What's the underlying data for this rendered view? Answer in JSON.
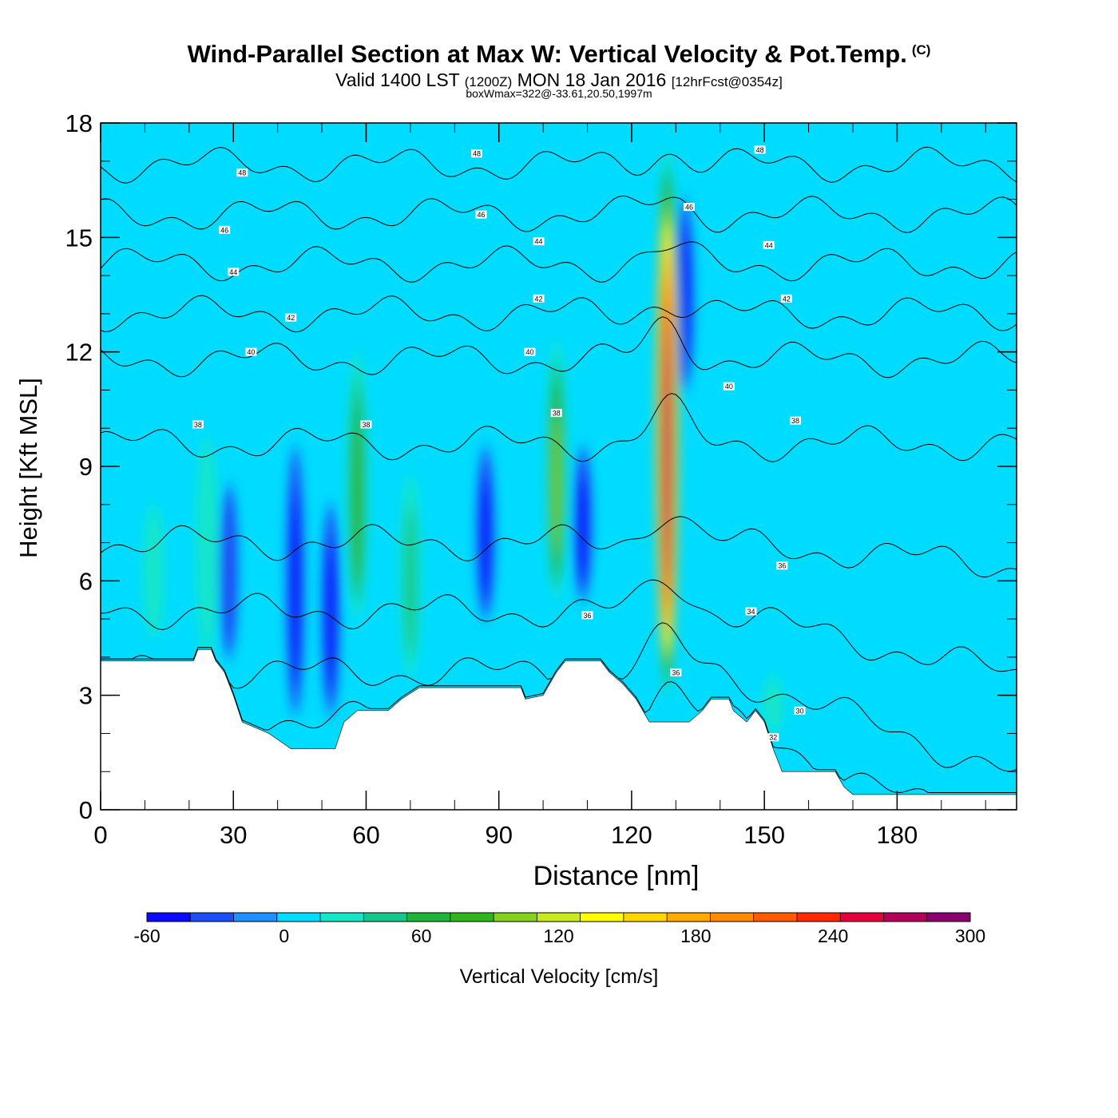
{
  "header": {
    "title": "Wind-Parallel Section at Max W: Vertical Velocity & Pot.Temp.",
    "copyright": "(C)",
    "subtitle_main": "Valid 1400 LST",
    "subtitle_utc": "(1200Z)",
    "subtitle_date": "MON 18 Jan 2016",
    "subtitle_fcst": "[12hrFcst@0354z]",
    "box_info": "boxWmax=322@-33.61,20.50,1997m"
  },
  "chart_data": {
    "type": "heatmap",
    "xlabel": "Distance [nm]",
    "ylabel": "Height [Kft MSL]",
    "xlim": [
      0,
      207
    ],
    "ylim": [
      0,
      18
    ],
    "x_ticks": [
      0,
      30,
      60,
      90,
      120,
      150,
      180
    ],
    "y_ticks": [
      0,
      3,
      6,
      9,
      12,
      15,
      18
    ],
    "colorbar": {
      "label": "Vertical Velocity [cm/s]",
      "ticks": [
        -60,
        0,
        60,
        120,
        180,
        240,
        300
      ],
      "bounds": [
        -60,
        300
      ],
      "colors": [
        "#0a0aff",
        "#1e4cf5",
        "#1e90ff",
        "#00dcff",
        "#14e6c8",
        "#14c88c",
        "#1eb43c",
        "#32b41e",
        "#82d21e",
        "#c8eb1e",
        "#ffff00",
        "#ffd700",
        "#ffaa00",
        "#ff8c00",
        "#ff5a00",
        "#ff2800",
        "#e6003c",
        "#b4005a",
        "#8c006e"
      ]
    },
    "background_level": 0,
    "updrafts": [
      {
        "x": 128,
        "bottom": 3.0,
        "top": 17.3,
        "peak": 322
      },
      {
        "x": 103,
        "bottom": 5.5,
        "top": 12.3,
        "peak": 100
      },
      {
        "x": 58,
        "bottom": 5.0,
        "top": 12.0,
        "peak": 80
      },
      {
        "x": 70,
        "bottom": 3.5,
        "top": 8.8,
        "peak": 40
      },
      {
        "x": 24,
        "bottom": 4.0,
        "top": 9.8,
        "peak": 30
      },
      {
        "x": 12,
        "bottom": 4.5,
        "top": 8.0,
        "peak": 30
      },
      {
        "x": 152,
        "bottom": 2.0,
        "top": 3.5,
        "peak": 35
      }
    ],
    "downdrafts": [
      {
        "x": 132,
        "bottom": 11.0,
        "top": 16.0,
        "peak": -40
      },
      {
        "x": 44,
        "bottom": 2.5,
        "top": 9.5,
        "peak": -50
      },
      {
        "x": 87,
        "bottom": 5.0,
        "top": 9.5,
        "peak": -45
      },
      {
        "x": 109,
        "bottom": 5.5,
        "top": 9.5,
        "peak": -40
      },
      {
        "x": 52,
        "bottom": 2.5,
        "top": 8.0,
        "peak": -45
      },
      {
        "x": 29,
        "bottom": 4.0,
        "top": 8.5,
        "peak": -35
      }
    ],
    "terrain": [
      {
        "x": 0,
        "h": 3.9
      },
      {
        "x": 21,
        "h": 3.9
      },
      {
        "x": 22,
        "h": 4.2
      },
      {
        "x": 25,
        "h": 4.2
      },
      {
        "x": 26,
        "h": 3.9
      },
      {
        "x": 28,
        "h": 3.6
      },
      {
        "x": 30,
        "h": 3.0
      },
      {
        "x": 32,
        "h": 2.3
      },
      {
        "x": 38,
        "h": 2.0
      },
      {
        "x": 43,
        "h": 1.6
      },
      {
        "x": 53,
        "h": 1.6
      },
      {
        "x": 55,
        "h": 2.3
      },
      {
        "x": 58,
        "h": 2.6
      },
      {
        "x": 65,
        "h": 2.6
      },
      {
        "x": 68,
        "h": 2.9
      },
      {
        "x": 72,
        "h": 3.2
      },
      {
        "x": 95,
        "h": 3.2
      },
      {
        "x": 96,
        "h": 2.9
      },
      {
        "x": 100,
        "h": 3.0
      },
      {
        "x": 103,
        "h": 3.6
      },
      {
        "x": 105,
        "h": 3.9
      },
      {
        "x": 113,
        "h": 3.9
      },
      {
        "x": 115,
        "h": 3.6
      },
      {
        "x": 118,
        "h": 3.3
      },
      {
        "x": 121,
        "h": 2.9
      },
      {
        "x": 124,
        "h": 2.3
      },
      {
        "x": 133,
        "h": 2.3
      },
      {
        "x": 136,
        "h": 2.6
      },
      {
        "x": 138,
        "h": 2.9
      },
      {
        "x": 142,
        "h": 2.9
      },
      {
        "x": 143,
        "h": 2.6
      },
      {
        "x": 146,
        "h": 2.3
      },
      {
        "x": 148,
        "h": 2.6
      },
      {
        "x": 150,
        "h": 2.3
      },
      {
        "x": 152,
        "h": 1.6
      },
      {
        "x": 154,
        "h": 1.0
      },
      {
        "x": 166,
        "h": 1.0
      },
      {
        "x": 168,
        "h": 0.6
      },
      {
        "x": 170,
        "h": 0.4
      },
      {
        "x": 207,
        "h": 0.4
      }
    ],
    "isentropes": [
      {
        "theta": 30,
        "base": 2.4
      },
      {
        "theta": 32,
        "base": 3.6
      },
      {
        "theta": 34,
        "base": 5.2
      },
      {
        "theta": 36,
        "base": 7.0
      },
      {
        "theta": 38,
        "base": 9.6
      },
      {
        "theta": 40,
        "base": 11.8
      },
      {
        "theta": 42,
        "base": 13.0
      },
      {
        "theta": 44,
        "base": 14.3
      },
      {
        "theta": 46,
        "base": 15.6
      },
      {
        "theta": 48,
        "base": 16.9
      }
    ],
    "contour_labels": [
      {
        "x": 32,
        "y": 16.7,
        "text": "48"
      },
      {
        "x": 85,
        "y": 17.2,
        "text": "48"
      },
      {
        "x": 149,
        "y": 17.3,
        "text": "48"
      },
      {
        "x": 28,
        "y": 15.2,
        "text": "46"
      },
      {
        "x": 86,
        "y": 15.6,
        "text": "46"
      },
      {
        "x": 133,
        "y": 15.8,
        "text": "46"
      },
      {
        "x": 30,
        "y": 14.1,
        "text": "44"
      },
      {
        "x": 99,
        "y": 14.9,
        "text": "44"
      },
      {
        "x": 151,
        "y": 14.8,
        "text": "44"
      },
      {
        "x": 43,
        "y": 12.9,
        "text": "42"
      },
      {
        "x": 99,
        "y": 13.4,
        "text": "42"
      },
      {
        "x": 155,
        "y": 13.4,
        "text": "42"
      },
      {
        "x": 34,
        "y": 12.0,
        "text": "40"
      },
      {
        "x": 97,
        "y": 12.0,
        "text": "40"
      },
      {
        "x": 142,
        "y": 11.1,
        "text": "40"
      },
      {
        "x": 22,
        "y": 10.1,
        "text": "38"
      },
      {
        "x": 60,
        "y": 10.1,
        "text": "38"
      },
      {
        "x": 103,
        "y": 10.4,
        "text": "38"
      },
      {
        "x": 157,
        "y": 10.2,
        "text": "38"
      },
      {
        "x": 154,
        "y": 6.4,
        "text": "36"
      },
      {
        "x": 110,
        "y": 5.1,
        "text": "36"
      },
      {
        "x": 130,
        "y": 3.6,
        "text": "36"
      },
      {
        "x": 147,
        "y": 5.2,
        "text": "34"
      },
      {
        "x": 158,
        "y": 2.6,
        "text": "30"
      },
      {
        "x": 152,
        "y": 1.9,
        "text": "32"
      }
    ]
  }
}
